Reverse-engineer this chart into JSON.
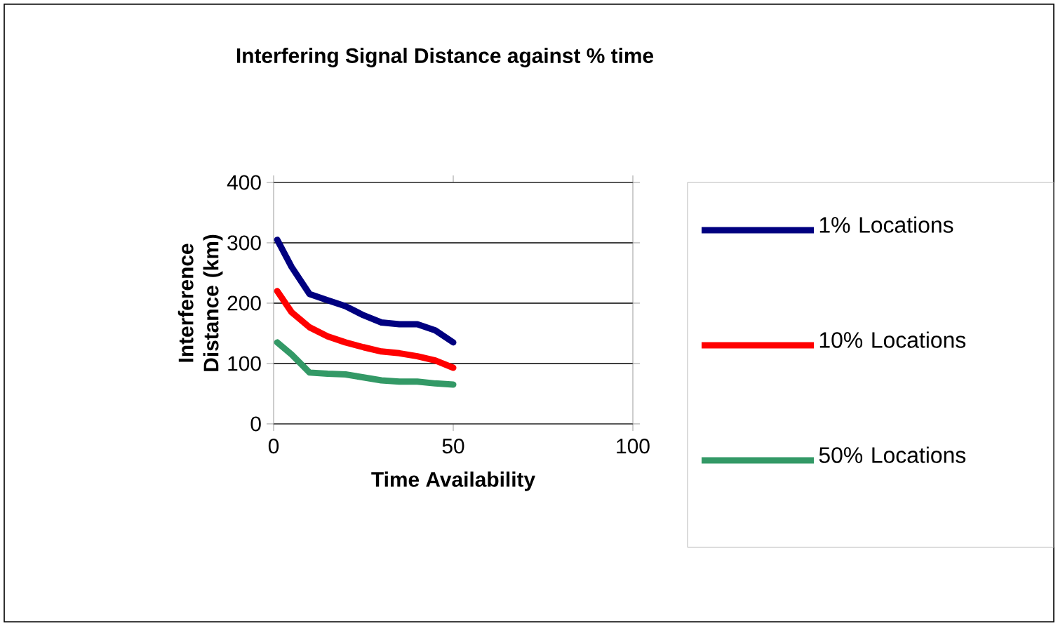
{
  "chart_data": {
    "type": "line",
    "title": "Interfering Signal Distance against % time",
    "xlabel": "Time Availability",
    "ylabel": "Interference Distance (km)",
    "x": [
      1,
      5,
      10,
      15,
      20,
      25,
      30,
      35,
      40,
      45,
      50
    ],
    "series": [
      {
        "name": "1% Locations",
        "color": "#000080",
        "values": [
          305,
          260,
          215,
          205,
          195,
          180,
          168,
          165,
          165,
          155,
          135
        ]
      },
      {
        "name": "10% Locations",
        "color": "#ff0000",
        "values": [
          220,
          185,
          160,
          145,
          135,
          127,
          120,
          117,
          112,
          105,
          93
        ]
      },
      {
        "name": "50% Locations",
        "color": "#339966",
        "values": [
          135,
          115,
          85,
          83,
          82,
          77,
          72,
          70,
          70,
          67,
          65
        ]
      }
    ],
    "xlim": [
      0,
      100
    ],
    "xticks": [
      0,
      50,
      100
    ],
    "ylim": [
      0,
      400
    ],
    "yticks": [
      0,
      100,
      200,
      300,
      400
    ],
    "grid": "y",
    "legend": "right",
    "marker": "none",
    "line_style": "solid"
  }
}
